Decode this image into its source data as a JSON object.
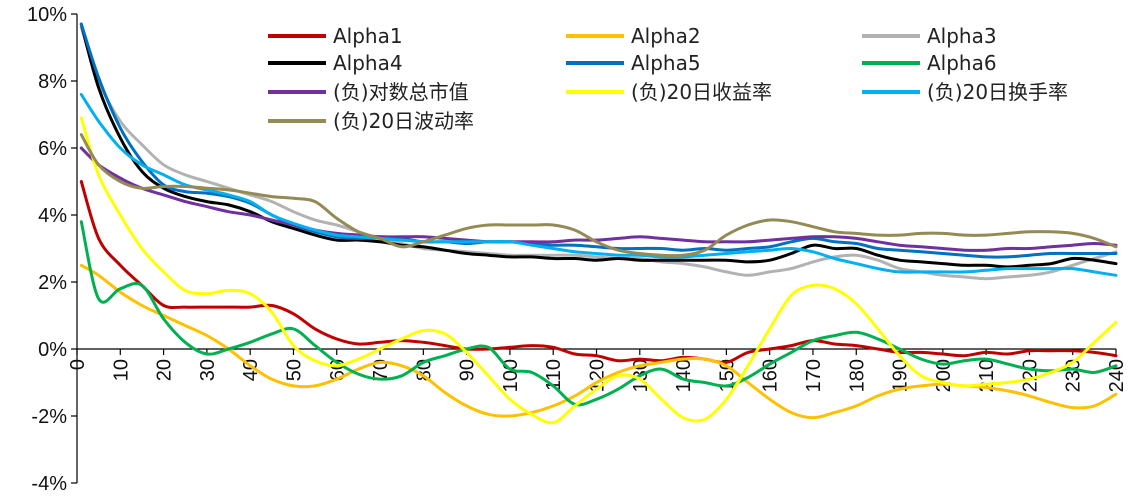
{
  "chart_data": {
    "type": "line",
    "title": "",
    "xlabel": "",
    "ylabel": "",
    "xlim": [
      0,
      240
    ],
    "ylim": [
      -4,
      10
    ],
    "x_ticks": [
      0,
      10,
      20,
      30,
      40,
      50,
      60,
      70,
      80,
      90,
      100,
      110,
      120,
      130,
      140,
      150,
      160,
      170,
      180,
      190,
      200,
      210,
      220,
      230,
      240
    ],
    "x_tick_labels": [
      "0",
      "10",
      "20",
      "30",
      "40",
      "50",
      "60",
      "70",
      "80",
      "90",
      "100",
      "110",
      "120",
      "130",
      "140",
      "150",
      "160",
      "170",
      "180",
      "190",
      "200",
      "210",
      "220",
      "230",
      "240"
    ],
    "y_ticks": [
      -4,
      -2,
      0,
      2,
      4,
      6,
      8,
      10
    ],
    "y_tick_labels": [
      "-4%",
      "-2%",
      "0%",
      "2%",
      "4%",
      "6%",
      "8%",
      "10%"
    ],
    "grid": false,
    "legend_position": "top-right",
    "x": [
      1,
      5,
      10,
      15,
      20,
      25,
      30,
      35,
      40,
      45,
      50,
      55,
      60,
      65,
      70,
      75,
      80,
      85,
      90,
      95,
      100,
      105,
      110,
      115,
      120,
      125,
      130,
      135,
      140,
      145,
      150,
      155,
      160,
      165,
      170,
      175,
      180,
      185,
      190,
      195,
      200,
      205,
      210,
      215,
      220,
      225,
      230,
      235,
      240
    ],
    "series": [
      {
        "name": "Alpha1",
        "color": "#c00000",
        "values": [
          5.0,
          3.3,
          2.5,
          1.9,
          1.3,
          1.25,
          1.25,
          1.25,
          1.25,
          1.3,
          1.05,
          0.6,
          0.3,
          0.15,
          0.2,
          0.25,
          0.2,
          0.1,
          0.0,
          0.0,
          0.05,
          0.1,
          0.05,
          -0.15,
          -0.2,
          -0.35,
          -0.3,
          -0.35,
          -0.25,
          -0.3,
          -0.4,
          -0.1,
          0.0,
          0.1,
          0.25,
          0.15,
          0.1,
          0.0,
          -0.1,
          -0.1,
          -0.15,
          -0.2,
          -0.1,
          -0.15,
          -0.05,
          -0.05,
          -0.05,
          -0.1,
          -0.2
        ]
      },
      {
        "name": "Alpha2",
        "color": "#ffc000",
        "values": [
          2.5,
          2.2,
          1.7,
          1.3,
          1.0,
          0.7,
          0.4,
          0.0,
          -0.5,
          -0.9,
          -1.1,
          -1.1,
          -0.9,
          -0.6,
          -0.4,
          -0.5,
          -0.8,
          -1.3,
          -1.7,
          -1.95,
          -2.0,
          -1.9,
          -1.7,
          -1.4,
          -1.0,
          -0.7,
          -0.5,
          -0.4,
          -0.3,
          -0.3,
          -0.5,
          -1.0,
          -1.5,
          -1.9,
          -2.05,
          -1.9,
          -1.7,
          -1.4,
          -1.2,
          -1.1,
          -1.05,
          -1.1,
          -1.15,
          -1.25,
          -1.4,
          -1.6,
          -1.75,
          -1.7,
          -1.35
        ]
      },
      {
        "name": "Alpha3",
        "color": "#b2b2b2",
        "values": [
          9.6,
          8.0,
          6.8,
          6.1,
          5.5,
          5.2,
          5.0,
          4.8,
          4.6,
          4.4,
          4.1,
          3.85,
          3.7,
          3.5,
          3.3,
          3.15,
          3.0,
          2.95,
          2.9,
          2.85,
          2.8,
          2.8,
          2.8,
          2.8,
          2.75,
          2.7,
          2.7,
          2.6,
          2.55,
          2.45,
          2.3,
          2.2,
          2.3,
          2.4,
          2.6,
          2.75,
          2.8,
          2.65,
          2.4,
          2.3,
          2.2,
          2.15,
          2.1,
          2.15,
          2.2,
          2.3,
          2.5,
          2.7,
          2.9
        ]
      },
      {
        "name": "Alpha4",
        "color": "#000000",
        "values": [
          9.7,
          7.8,
          6.3,
          5.3,
          4.8,
          4.55,
          4.4,
          4.3,
          4.1,
          3.8,
          3.6,
          3.4,
          3.25,
          3.25,
          3.2,
          3.1,
          3.05,
          2.95,
          2.85,
          2.8,
          2.75,
          2.75,
          2.7,
          2.7,
          2.65,
          2.7,
          2.65,
          2.65,
          2.65,
          2.65,
          2.65,
          2.6,
          2.65,
          2.85,
          3.1,
          3.0,
          3.0,
          2.8,
          2.65,
          2.6,
          2.55,
          2.5,
          2.5,
          2.45,
          2.5,
          2.55,
          2.7,
          2.65,
          2.55
        ]
      },
      {
        "name": "Alpha5",
        "color": "#0070c0",
        "values": [
          9.7,
          8.1,
          6.6,
          5.6,
          4.9,
          4.7,
          4.65,
          4.55,
          4.35,
          4.0,
          3.7,
          3.5,
          3.35,
          3.3,
          3.35,
          3.3,
          3.2,
          3.2,
          3.15,
          3.2,
          3.2,
          3.15,
          3.1,
          3.1,
          3.05,
          3.0,
          3.0,
          3.0,
          2.95,
          3.0,
          2.95,
          3.0,
          3.05,
          3.2,
          3.3,
          3.2,
          3.15,
          3.0,
          2.95,
          2.9,
          2.85,
          2.8,
          2.75,
          2.75,
          2.8,
          2.85,
          2.85,
          2.85,
          2.85
        ]
      },
      {
        "name": "Alpha6",
        "color": "#00b050",
        "values": [
          3.8,
          1.5,
          1.8,
          1.9,
          0.9,
          0.2,
          -0.15,
          0.0,
          0.2,
          0.45,
          0.6,
          0.1,
          -0.4,
          -0.75,
          -0.9,
          -0.8,
          -0.4,
          -0.2,
          0.0,
          0.05,
          -0.6,
          -0.7,
          -1.1,
          -1.65,
          -1.5,
          -1.2,
          -0.8,
          -0.6,
          -0.9,
          -1.0,
          -1.1,
          -0.85,
          -0.45,
          -0.1,
          0.25,
          0.4,
          0.5,
          0.3,
          0.0,
          -0.3,
          -0.45,
          -0.35,
          -0.3,
          -0.45,
          -0.6,
          -0.65,
          -0.6,
          -0.7,
          -0.5
        ]
      },
      {
        "name": "(负)对数总市值",
        "color": "#7030a0",
        "values": [
          6.0,
          5.5,
          5.1,
          4.8,
          4.6,
          4.4,
          4.25,
          4.1,
          4.0,
          3.85,
          3.7,
          3.55,
          3.45,
          3.4,
          3.35,
          3.35,
          3.35,
          3.3,
          3.25,
          3.2,
          3.2,
          3.2,
          3.2,
          3.25,
          3.25,
          3.3,
          3.35,
          3.3,
          3.25,
          3.2,
          3.2,
          3.2,
          3.25,
          3.3,
          3.35,
          3.35,
          3.3,
          3.2,
          3.1,
          3.05,
          3.0,
          2.95,
          2.95,
          3.0,
          3.0,
          3.05,
          3.1,
          3.15,
          3.1
        ]
      },
      {
        "name": "(负)20日收益率",
        "color": "#ffff00",
        "values": [
          6.9,
          5.2,
          4.0,
          3.0,
          2.3,
          1.75,
          1.65,
          1.75,
          1.65,
          1.1,
          0.1,
          -0.35,
          -0.5,
          -0.3,
          0.0,
          0.3,
          0.55,
          0.45,
          -0.1,
          -0.8,
          -1.5,
          -1.95,
          -2.2,
          -1.7,
          -1.2,
          -0.8,
          -0.9,
          -1.5,
          -2.05,
          -2.1,
          -1.5,
          -0.5,
          0.6,
          1.6,
          1.9,
          1.8,
          1.35,
          0.6,
          -0.2,
          -0.8,
          -1.0,
          -1.1,
          -1.05,
          -1.0,
          -0.9,
          -0.7,
          -0.4,
          0.2,
          0.8
        ]
      },
      {
        "name": "(负)20日换手率",
        "color": "#00b0f0",
        "values": [
          7.6,
          6.8,
          6.0,
          5.5,
          5.2,
          4.9,
          4.75,
          4.6,
          4.4,
          4.0,
          3.75,
          3.55,
          3.4,
          3.35,
          3.3,
          3.25,
          3.2,
          3.2,
          3.2,
          3.2,
          3.2,
          3.1,
          3.0,
          2.9,
          2.85,
          2.8,
          2.8,
          2.75,
          2.75,
          2.8,
          2.85,
          2.9,
          2.95,
          3.0,
          2.9,
          2.7,
          2.55,
          2.4,
          2.3,
          2.3,
          2.3,
          2.3,
          2.35,
          2.4,
          2.4,
          2.4,
          2.4,
          2.3,
          2.2
        ]
      },
      {
        "name": "(负)20日波动率",
        "color": "#948a54",
        "values": [
          6.4,
          5.5,
          5.0,
          4.8,
          4.85,
          4.85,
          4.8,
          4.75,
          4.65,
          4.55,
          4.5,
          4.4,
          3.9,
          3.5,
          3.3,
          3.05,
          3.2,
          3.4,
          3.6,
          3.7,
          3.7,
          3.7,
          3.7,
          3.55,
          3.2,
          2.95,
          2.85,
          2.8,
          2.8,
          2.95,
          3.4,
          3.7,
          3.85,
          3.8,
          3.65,
          3.5,
          3.45,
          3.4,
          3.4,
          3.45,
          3.45,
          3.4,
          3.4,
          3.45,
          3.5,
          3.5,
          3.45,
          3.3,
          3.05
        ]
      }
    ]
  }
}
